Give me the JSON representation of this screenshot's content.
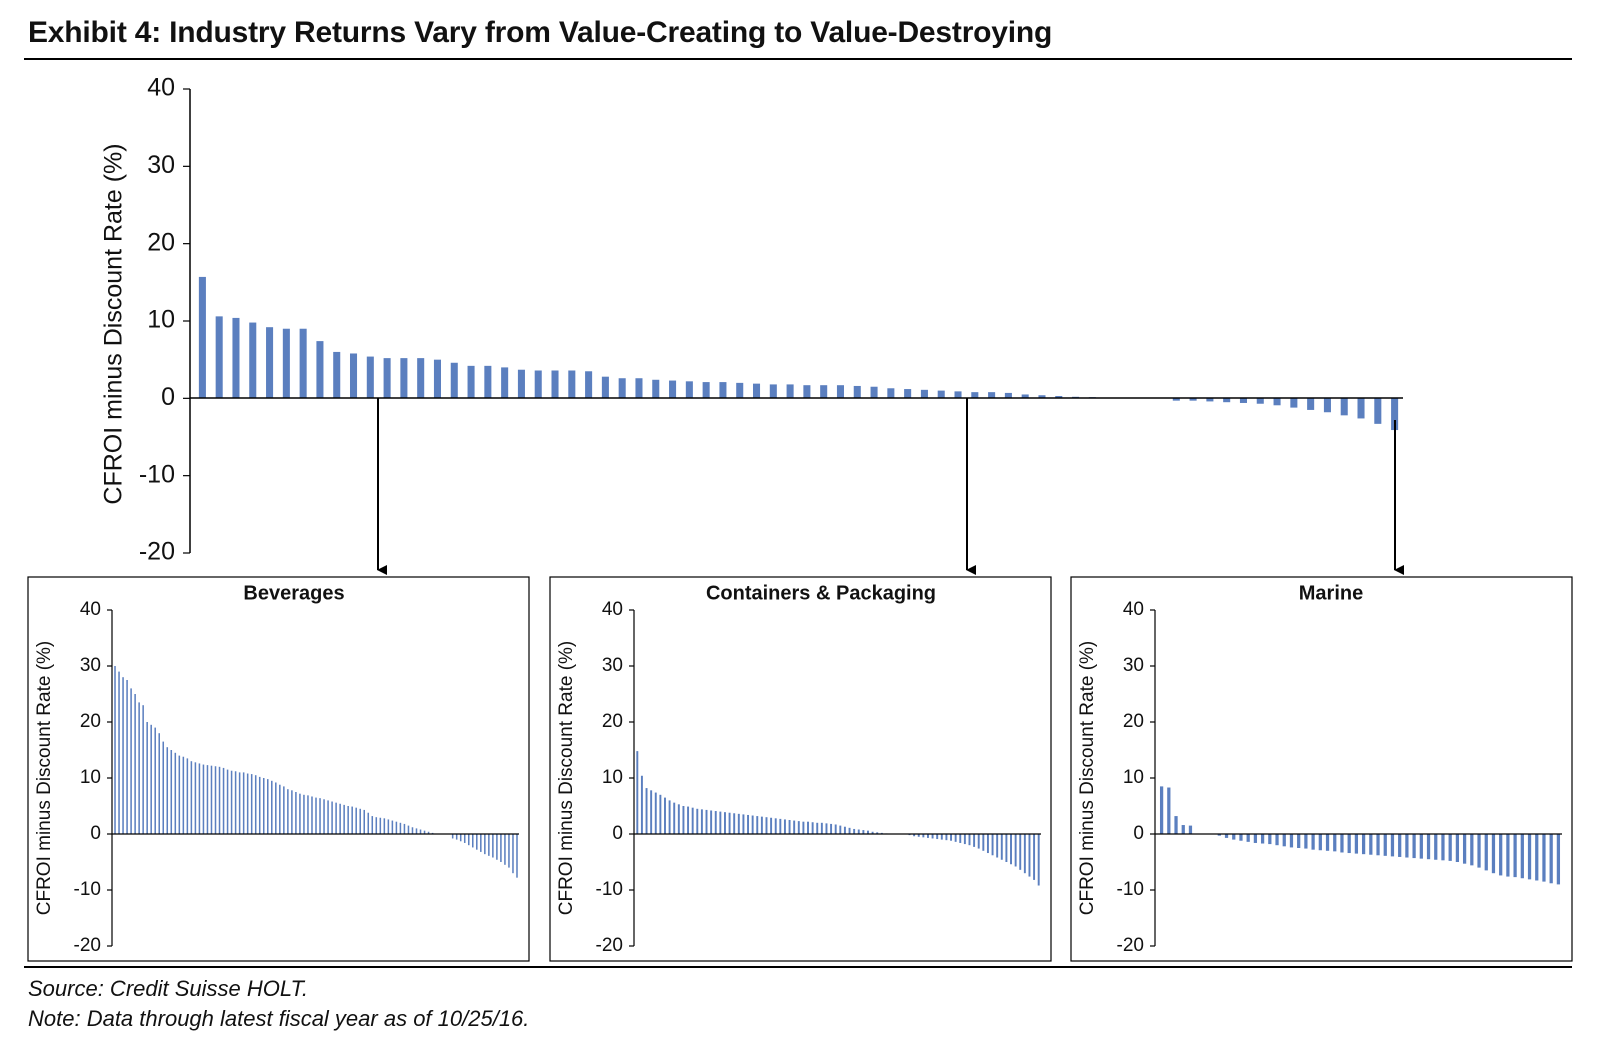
{
  "title": "Exhibit 4: Industry Returns Vary from Value-Creating to Value-Destroying",
  "source": "Source: Credit Suisse HOLT.",
  "note": "Note: Data through latest fiscal year as of 10/25/16.",
  "colors": {
    "bar": "#5B7FBF",
    "axis": "#000000"
  },
  "chart_data": [
    {
      "type": "bar",
      "name": "all-industries",
      "ylabel": "CFROI minus Discount Rate (%)",
      "ylim": [
        -20,
        40
      ],
      "yticks": [
        40,
        30,
        20,
        10,
        0,
        -10,
        -20
      ],
      "grid": false,
      "values": [
        15.7,
        10.6,
        10.4,
        9.8,
        9.2,
        9.0,
        9.0,
        7.4,
        6.0,
        5.8,
        5.4,
        5.2,
        5.2,
        5.2,
        5.0,
        4.6,
        4.2,
        4.2,
        4.0,
        3.7,
        3.6,
        3.6,
        3.6,
        3.5,
        2.8,
        2.6,
        2.6,
        2.4,
        2.3,
        2.2,
        2.1,
        2.1,
        2.0,
        1.9,
        1.8,
        1.8,
        1.7,
        1.7,
        1.7,
        1.6,
        1.5,
        1.3,
        1.2,
        1.1,
        1.0,
        0.9,
        0.8,
        0.8,
        0.7,
        0.5,
        0.4,
        0.3,
        0.2,
        0.15,
        0.0,
        0.0,
        0.0,
        0.0,
        -0.3,
        -0.3,
        -0.4,
        -0.5,
        -0.6,
        -0.7,
        -0.9,
        -1.2,
        -1.5,
        -1.8,
        -2.2,
        -2.6,
        -3.3,
        -4.1
      ]
    },
    {
      "type": "bar",
      "name": "beverages",
      "title": "Beverages",
      "ylabel": "CFROI minus Discount Rate (%)",
      "ylim": [
        -20,
        40
      ],
      "yticks": [
        40,
        30,
        20,
        10,
        0,
        -10,
        -20
      ],
      "grid": false,
      "values": [
        30.0,
        29.0,
        28.0,
        27.5,
        26.0,
        25.0,
        23.5,
        23.0,
        20.0,
        19.5,
        19.0,
        18.0,
        16.5,
        15.5,
        15.0,
        14.5,
        14.0,
        13.8,
        13.5,
        13.0,
        12.8,
        12.6,
        12.4,
        12.3,
        12.2,
        12.1,
        12.0,
        11.8,
        11.5,
        11.3,
        11.2,
        11.0,
        11.0,
        10.8,
        10.7,
        10.5,
        10.2,
        10.0,
        9.8,
        9.5,
        9.2,
        8.8,
        8.5,
        8.0,
        7.8,
        7.5,
        7.2,
        7.0,
        6.9,
        6.7,
        6.5,
        6.4,
        6.2,
        6.0,
        5.8,
        5.6,
        5.4,
        5.2,
        5.0,
        4.9,
        4.7,
        4.5,
        4.3,
        3.8,
        3.2,
        3.0,
        2.9,
        2.8,
        2.6,
        2.4,
        2.2,
        2.0,
        1.8,
        1.5,
        1.2,
        1.0,
        0.8,
        0.6,
        0.4,
        0.2,
        0.0,
        0.0,
        0.0,
        0.0,
        -0.8,
        -1.0,
        -1.3,
        -1.6,
        -2.0,
        -2.4,
        -2.8,
        -3.2,
        -3.6,
        -3.9,
        -4.2,
        -4.6,
        -5.0,
        -5.5,
        -6.0,
        -7.0,
        -7.8
      ]
    },
    {
      "type": "bar",
      "name": "containers-packaging",
      "title": "Containers & Packaging",
      "ylabel": "CFROI minus Discount Rate (%)",
      "ylim": [
        -20,
        40
      ],
      "yticks": [
        40,
        30,
        20,
        10,
        0,
        -10,
        -20
      ],
      "grid": false,
      "values": [
        14.8,
        10.4,
        8.2,
        7.8,
        7.4,
        7.0,
        6.5,
        6.0,
        5.6,
        5.3,
        5.0,
        4.9,
        4.7,
        4.5,
        4.4,
        4.3,
        4.2,
        4.1,
        4.0,
        3.9,
        3.8,
        3.7,
        3.6,
        3.5,
        3.4,
        3.3,
        3.2,
        3.1,
        3.0,
        2.9,
        2.8,
        2.7,
        2.6,
        2.5,
        2.4,
        2.3,
        2.2,
        2.2,
        2.1,
        2.0,
        2.0,
        1.9,
        1.8,
        1.7,
        1.5,
        1.3,
        1.1,
        0.9,
        0.8,
        0.7,
        0.6,
        0.4,
        0.3,
        0.2,
        0.1,
        0.0,
        0.0,
        0.0,
        0.0,
        -0.2,
        -0.4,
        -0.5,
        -0.6,
        -0.7,
        -0.8,
        -0.9,
        -1.0,
        -1.1,
        -1.2,
        -1.4,
        -1.6,
        -1.8,
        -2.0,
        -2.3,
        -2.6,
        -3.0,
        -3.4,
        -3.8,
        -4.2,
        -4.6,
        -5.0,
        -5.4,
        -5.8,
        -6.4,
        -7.0,
        -7.6,
        -8.2,
        -9.2
      ]
    },
    {
      "type": "bar",
      "name": "marine",
      "title": "Marine",
      "ylabel": "CFROI minus Discount Rate (%)",
      "ylim": [
        -20,
        40
      ],
      "yticks": [
        40,
        30,
        20,
        10,
        0,
        -10,
        -20
      ],
      "grid": false,
      "values": [
        8.5,
        8.3,
        3.2,
        1.6,
        1.5,
        0.0,
        0.0,
        0.0,
        -0.3,
        -0.7,
        -1.0,
        -1.2,
        -1.4,
        -1.6,
        -1.7,
        -1.8,
        -2.0,
        -2.2,
        -2.4,
        -2.5,
        -2.6,
        -2.8,
        -2.9,
        -3.0,
        -3.1,
        -3.3,
        -3.4,
        -3.5,
        -3.6,
        -3.7,
        -3.8,
        -3.9,
        -4.0,
        -4.1,
        -4.2,
        -4.3,
        -4.4,
        -4.5,
        -4.6,
        -4.7,
        -4.8,
        -5.0,
        -5.3,
        -5.6,
        -6.0,
        -6.5,
        -7.0,
        -7.4,
        -7.6,
        -7.7,
        -7.9,
        -8.1,
        -8.3,
        -8.5,
        -8.8,
        -9.0
      ]
    }
  ]
}
